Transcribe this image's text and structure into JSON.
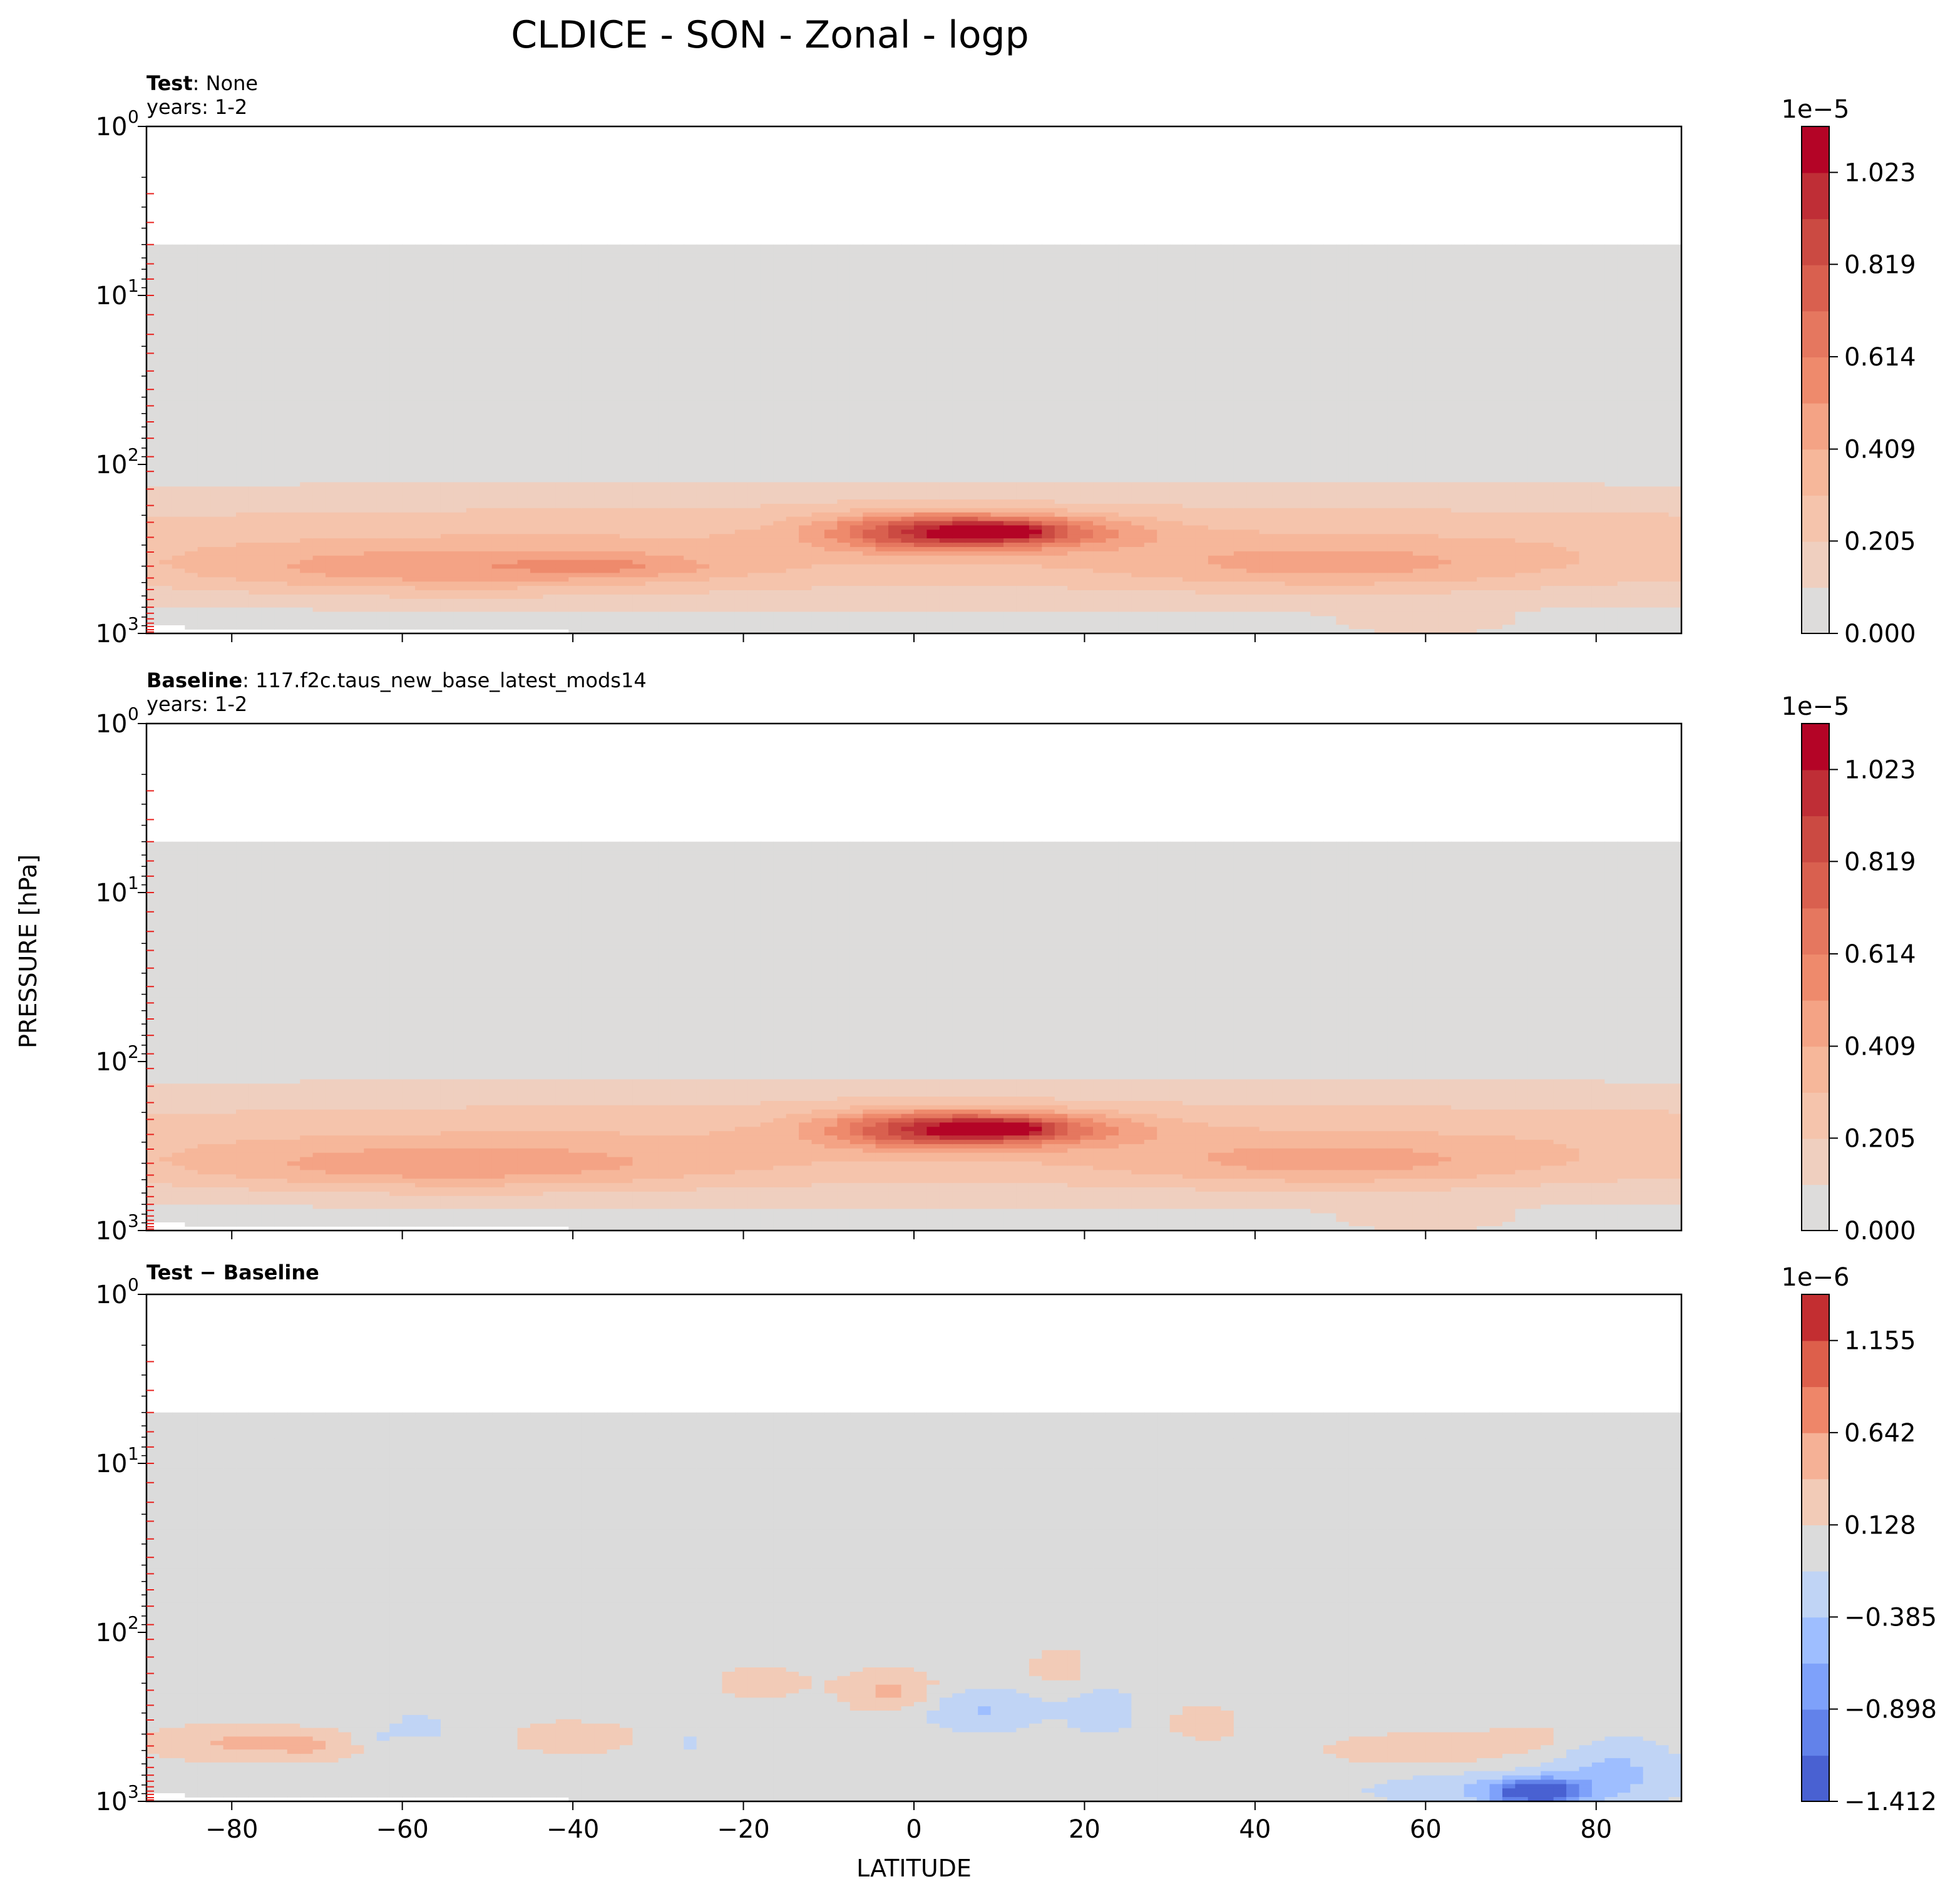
{
  "figure": {
    "title": "CLDICE - SON - Zonal - logp",
    "xlabel": "LATITUDE",
    "ylabel": "PRESSURE [hPa]"
  },
  "chart_data": [
    {
      "type": "heatmap",
      "panel_label_bold": "Test",
      "panel_label_rest": ": None",
      "years": "years: 1-2",
      "x": "latitude",
      "xlim": [
        -90,
        90
      ],
      "xticks": [
        -80,
        -60,
        -40,
        -20,
        0,
        20,
        40,
        60,
        80
      ],
      "yscale": "log",
      "ylim": [
        1000,
        1
      ],
      "yticks": [
        "10^0",
        "10^1",
        "10^2",
        "10^3"
      ],
      "colormap": "coolwarm",
      "colorbar": {
        "exponent": "1e−5",
        "ticks": [
          "0.000",
          "0.205",
          "0.409",
          "0.614",
          "0.819",
          "1.023"
        ],
        "tick_values": [
          0,
          0.205,
          0.409,
          0.614,
          0.819,
          1.023
        ],
        "range": [
          0,
          1.125
        ],
        "levels": 11,
        "colors": [
          "#dddcdb",
          "#efcfbf",
          "#f5c4ac",
          "#f6b79a",
          "#f4a385",
          "#ee8a6c",
          "#e5775f",
          "#d9604f",
          "#cb4a42",
          "#bf2e36",
          "#b40426"
        ]
      },
      "data_top_pressure": 5,
      "features": [
        {
          "kind": "max",
          "lat": 10,
          "pressure": 250,
          "value": 1.1
        },
        {
          "kind": "band",
          "lat_range": [
            -90,
            90
          ],
          "pressure_range": [
            150,
            900
          ],
          "value": 0.3
        },
        {
          "kind": "band",
          "lat_range": [
            -80,
            -30
          ],
          "pressure_range": [
            300,
            600
          ],
          "value": 0.4
        }
      ]
    },
    {
      "type": "heatmap",
      "panel_label_bold": "Baseline",
      "panel_label_rest": ": 117.f2c.taus_new_base_latest_mods14",
      "years": "years: 1-2",
      "x": "latitude",
      "xlim": [
        -90,
        90
      ],
      "xticks": [
        -80,
        -60,
        -40,
        -20,
        0,
        20,
        40,
        60,
        80
      ],
      "yscale": "log",
      "ylim": [
        1000,
        1
      ],
      "yticks": [
        "10^0",
        "10^1",
        "10^2",
        "10^3"
      ],
      "colormap": "coolwarm",
      "colorbar": {
        "exponent": "1e−5",
        "ticks": [
          "0.000",
          "0.205",
          "0.409",
          "0.614",
          "0.819",
          "1.023"
        ],
        "tick_values": [
          0,
          0.205,
          0.409,
          0.614,
          0.819,
          1.023
        ],
        "range": [
          0,
          1.125
        ],
        "levels": 11,
        "colors": [
          "#dddcdb",
          "#efcfbf",
          "#f5c4ac",
          "#f6b79a",
          "#f4a385",
          "#ee8a6c",
          "#e5775f",
          "#d9604f",
          "#cb4a42",
          "#bf2e36",
          "#b40426"
        ]
      },
      "data_top_pressure": 5,
      "features": [
        {
          "kind": "max",
          "lat": 10,
          "pressure": 250,
          "value": 1.1
        },
        {
          "kind": "band",
          "lat_range": [
            -90,
            90
          ],
          "pressure_range": [
            150,
            900
          ],
          "value": 0.3
        }
      ]
    },
    {
      "type": "heatmap",
      "panel_label_bold": "Test − Baseline",
      "panel_label_rest": "",
      "years": "",
      "x": "latitude",
      "xlim": [
        -90,
        90
      ],
      "xticks": [
        -80,
        -60,
        -40,
        -20,
        0,
        20,
        40,
        60,
        80
      ],
      "yscale": "log",
      "ylim": [
        1000,
        1
      ],
      "yticks": [
        "10^0",
        "10^1",
        "10^2",
        "10^3"
      ],
      "colormap": "coolwarm",
      "colorbar": {
        "exponent": "1e−6",
        "ticks": [
          "−1.412",
          "−0.898",
          "−0.385",
          "0.128",
          "0.642",
          "1.155"
        ],
        "tick_values": [
          -1.412,
          -0.898,
          -0.385,
          0.128,
          0.642,
          1.155
        ],
        "range": [
          -1.412,
          1.412
        ],
        "levels": 11,
        "colors": [
          "#4961d2",
          "#6282ea",
          "#7ea1fa",
          "#9ebeff",
          "#c0d4f5",
          "#dbdbdb",
          "#f2cbb7",
          "#f5b196",
          "#ee8669",
          "#dd5f4b",
          "#c32e31"
        ]
      },
      "data_top_pressure": 5,
      "features": [
        {
          "kind": "min",
          "lat": 73,
          "pressure": 880,
          "value": -1.4
        },
        {
          "kind": "positive",
          "lat": -80,
          "pressure": 450,
          "value": 0.4
        },
        {
          "kind": "positive",
          "lat": -3,
          "pressure": 220,
          "value": 0.5
        },
        {
          "kind": "negative",
          "lat": 10,
          "pressure": 280,
          "value": -0.4
        }
      ]
    }
  ]
}
